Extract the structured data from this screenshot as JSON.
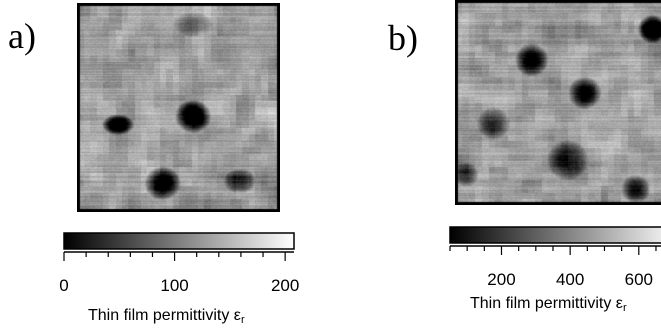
{
  "panels": [
    {
      "id": "a",
      "letter": "a)",
      "colorbar": {
        "range": [
          0,
          208
        ],
        "ticks": [
          0,
          100,
          200
        ],
        "minor_tick_step": 20,
        "label": "Thin film permittivity ε",
        "label_subscript": "r",
        "gradient": [
          "#000000",
          "#ffffff"
        ]
      }
    },
    {
      "id": "b",
      "letter": "b)",
      "colorbar": {
        "range": [
          50,
          720
        ],
        "ticks": [
          200,
          400,
          600
        ],
        "minor_tick_step": 50,
        "label": "Thin film permittivity ε",
        "label_subscript": "r",
        "gradient": [
          "#000000",
          "#ffffff"
        ]
      }
    }
  ]
}
